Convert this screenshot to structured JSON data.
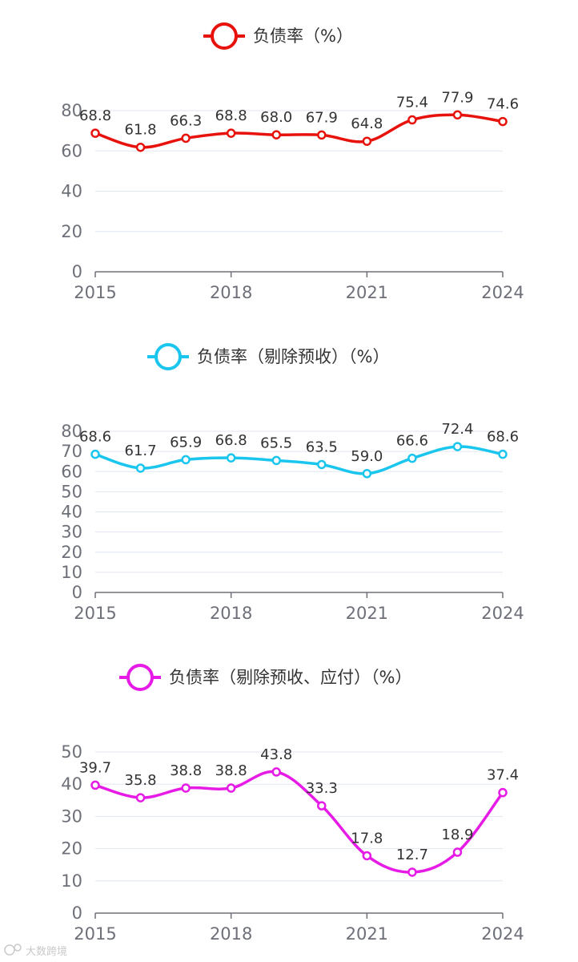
{
  "chart_data": [
    {
      "type": "line",
      "legend": "负债率（%）",
      "color": "#e8120c",
      "categories": [
        "2015",
        "2016",
        "2017",
        "2018",
        "2019",
        "2020",
        "2021",
        "2022",
        "2023",
        "2024"
      ],
      "x_tick_labels": [
        "2015",
        "2018",
        "2021",
        "2024"
      ],
      "values": [
        68.8,
        61.8,
        66.3,
        68.8,
        68.0,
        67.9,
        64.8,
        75.4,
        77.9,
        74.6
      ],
      "data_labels": [
        "68.8",
        "61.8",
        "66.3",
        "68.8",
        "68.0",
        "67.9",
        "64.8",
        "75.4",
        "77.9",
        "74.6"
      ],
      "ylim": [
        0,
        80
      ],
      "y_ticks": [
        0,
        20,
        40,
        60,
        80
      ],
      "smooth": true,
      "grid": true,
      "legend_position": "top-center"
    },
    {
      "type": "line",
      "legend": "负债率（剔除预收）（%）",
      "color": "#1bc6ee",
      "categories": [
        "2015",
        "2016",
        "2017",
        "2018",
        "2019",
        "2020",
        "2021",
        "2022",
        "2023",
        "2024"
      ],
      "x_tick_labels": [
        "2015",
        "2018",
        "2021",
        "2024"
      ],
      "values": [
        68.6,
        61.7,
        65.9,
        66.8,
        65.5,
        63.5,
        59.0,
        66.6,
        72.4,
        68.6
      ],
      "data_labels": [
        "68.6",
        "61.7",
        "65.9",
        "66.8",
        "65.5",
        "63.5",
        "59.0",
        "66.6",
        "72.4",
        "68.6"
      ],
      "ylim": [
        0,
        80
      ],
      "y_ticks": [
        0,
        10,
        20,
        30,
        40,
        50,
        60,
        70,
        80
      ],
      "smooth": true,
      "grid": true,
      "legend_position": "top-center"
    },
    {
      "type": "line",
      "legend": "负债率（剔除预收、应付）（%）",
      "color": "#e61be6",
      "categories": [
        "2015",
        "2016",
        "2017",
        "2018",
        "2019",
        "2020",
        "2021",
        "2022",
        "2023",
        "2024"
      ],
      "x_tick_labels": [
        "2015",
        "2018",
        "2021",
        "2024"
      ],
      "values": [
        39.7,
        35.8,
        38.8,
        38.8,
        43.8,
        33.3,
        17.8,
        12.7,
        18.9,
        37.4
      ],
      "data_labels": [
        "39.7",
        "35.8",
        "38.8",
        "38.8",
        "43.8",
        "33.3",
        "17.8",
        "12.7",
        "18.9",
        "37.4"
      ],
      "ylim": [
        0,
        50
      ],
      "y_ticks": [
        0,
        10,
        20,
        30,
        40,
        50
      ],
      "smooth": true,
      "grid": true,
      "legend_position": "top-center"
    }
  ],
  "watermark": {
    "text": "大数跨境",
    "icon": "watermark-logo-icon"
  }
}
